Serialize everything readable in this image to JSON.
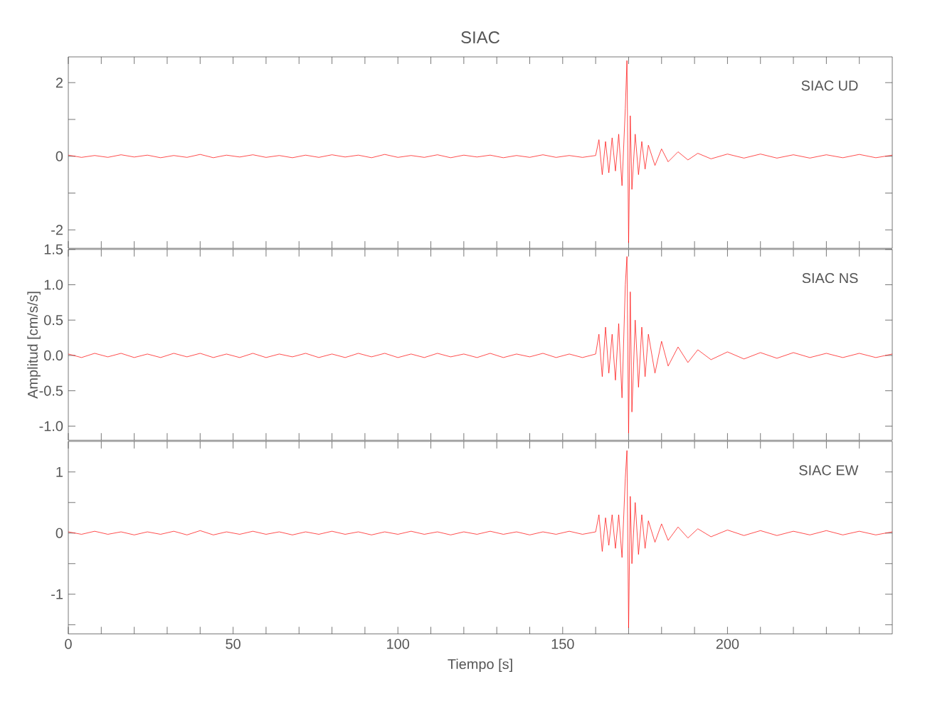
{
  "chart_data": [
    {
      "type": "line",
      "title": "SIAC",
      "annotations": [
        "SIAC   UD"
      ],
      "tick_labels": "y",
      "xlim": [
        0,
        250
      ],
      "ylim": [
        -2.5,
        2.7
      ],
      "xticks": [
        0,
        {
          "value": 10,
          "label": null
        },
        {
          "value": 20,
          "label": null
        },
        {
          "value": 30,
          "label": null
        },
        {
          "value": 40,
          "label": null
        },
        50,
        {
          "value": 60,
          "label": null
        },
        {
          "value": 70,
          "label": null
        },
        {
          "value": 80,
          "label": null
        },
        {
          "value": 90,
          "label": null
        },
        100,
        {
          "value": 110,
          "label": null
        },
        {
          "value": 120,
          "label": null
        },
        {
          "value": 130,
          "label": null
        },
        {
          "value": 140,
          "label": null
        },
        150,
        {
          "value": 160,
          "label": null
        },
        {
          "value": 170,
          "label": null
        },
        {
          "value": 180,
          "label": null
        },
        {
          "value": 190,
          "label": null
        },
        200,
        {
          "value": 210,
          "label": null
        },
        {
          "value": 220,
          "label": null
        },
        {
          "value": 230,
          "label": null
        },
        {
          "value": 240,
          "label": null
        }
      ],
      "yticks": [
        2,
        {
          "value": 1,
          "label": null
        },
        0,
        {
          "value": -1,
          "label": null
        },
        -2
      ],
      "series": [
        {
          "color": "#ff0000",
          "x": [
            0,
            4,
            8,
            12,
            16,
            20,
            24,
            28,
            32,
            36,
            40,
            44,
            48,
            52,
            56,
            60,
            64,
            68,
            72,
            76,
            80,
            84,
            88,
            92,
            96,
            100,
            104,
            108,
            112,
            116,
            120,
            124,
            128,
            132,
            136,
            140,
            144,
            148,
            152,
            156,
            160,
            161,
            162,
            163,
            164,
            165,
            166,
            167,
            168,
            169,
            169.5,
            170,
            170.5,
            171,
            172,
            173,
            174,
            175,
            176,
            178,
            180,
            182,
            185,
            188,
            191,
            195,
            200,
            205,
            210,
            215,
            220,
            225,
            230,
            235,
            240,
            245,
            250
          ],
          "values": [
            0.03,
            -0.03,
            0.02,
            -0.03,
            0.04,
            -0.02,
            0.03,
            -0.04,
            0.02,
            -0.03,
            0.05,
            -0.04,
            0.03,
            -0.02,
            0.04,
            -0.03,
            0.02,
            -0.04,
            0.03,
            -0.03,
            0.04,
            -0.02,
            0.03,
            -0.04,
            0.05,
            -0.03,
            0.02,
            -0.03,
            0.04,
            -0.04,
            0.03,
            -0.02,
            0.03,
            -0.04,
            0.02,
            -0.03,
            0.04,
            -0.03,
            0.02,
            -0.03,
            0.02,
            0.45,
            -0.5,
            0.4,
            -0.45,
            0.5,
            -0.4,
            0.6,
            -0.8,
            1.3,
            2.6,
            -2.35,
            1.1,
            -0.9,
            0.6,
            -0.5,
            0.4,
            -0.35,
            0.3,
            -0.25,
            0.2,
            -0.15,
            0.12,
            -0.1,
            0.08,
            -0.07,
            0.06,
            -0.05,
            0.06,
            -0.05,
            0.04,
            -0.05,
            0.04,
            -0.04,
            0.05,
            -0.04,
            0.03
          ]
        }
      ]
    },
    {
      "type": "line",
      "ylabel": "Amplitud [cm/s/s]",
      "annotations": [
        "SIAC   NS"
      ],
      "tick_labels": "y",
      "xlim": [
        0,
        250
      ],
      "ylim": [
        -1.2,
        1.5
      ],
      "xticks": [
        0,
        {
          "value": 10,
          "label": null
        },
        {
          "value": 20,
          "label": null
        },
        {
          "value": 30,
          "label": null
        },
        {
          "value": 40,
          "label": null
        },
        50,
        {
          "value": 60,
          "label": null
        },
        {
          "value": 70,
          "label": null
        },
        {
          "value": 80,
          "label": null
        },
        {
          "value": 90,
          "label": null
        },
        100,
        {
          "value": 110,
          "label": null
        },
        {
          "value": 120,
          "label": null
        },
        {
          "value": 130,
          "label": null
        },
        {
          "value": 140,
          "label": null
        },
        150,
        {
          "value": 160,
          "label": null
        },
        {
          "value": 170,
          "label": null
        },
        {
          "value": 180,
          "label": null
        },
        {
          "value": 190,
          "label": null
        },
        200,
        {
          "value": 210,
          "label": null
        },
        {
          "value": 220,
          "label": null
        },
        {
          "value": 230,
          "label": null
        },
        {
          "value": 240,
          "label": null
        }
      ],
      "yticks": [
        1.5,
        {
          "value": 1.0,
          "label": "1.0"
        },
        0.5,
        {
          "value": 0.0,
          "label": "0.0"
        },
        -0.5,
        {
          "value": -1.0,
          "label": "-1.0"
        }
      ],
      "series": [
        {
          "color": "#ff0000",
          "x": [
            0,
            4,
            8,
            12,
            16,
            20,
            24,
            28,
            32,
            36,
            40,
            44,
            48,
            52,
            56,
            60,
            64,
            68,
            72,
            76,
            80,
            84,
            88,
            92,
            96,
            100,
            104,
            108,
            112,
            116,
            120,
            124,
            128,
            132,
            136,
            140,
            144,
            148,
            152,
            156,
            160,
            161,
            162,
            163,
            164,
            165,
            166,
            167,
            168,
            169,
            169.5,
            170,
            170.5,
            171,
            172,
            173,
            174,
            175,
            176,
            178,
            180,
            182,
            185,
            188,
            191,
            195,
            200,
            205,
            210,
            215,
            220,
            225,
            230,
            235,
            240,
            245,
            250
          ],
          "values": [
            0.02,
            -0.03,
            0.03,
            -0.02,
            0.03,
            -0.03,
            0.02,
            -0.03,
            0.03,
            -0.02,
            0.03,
            -0.03,
            0.02,
            -0.03,
            0.03,
            -0.03,
            0.02,
            -0.02,
            0.03,
            -0.03,
            0.02,
            -0.03,
            0.03,
            -0.02,
            0.03,
            -0.03,
            0.02,
            -0.03,
            0.03,
            -0.02,
            0.02,
            -0.03,
            0.03,
            -0.03,
            0.02,
            -0.02,
            0.03,
            -0.03,
            0.02,
            -0.03,
            0.02,
            0.3,
            -0.3,
            0.4,
            -0.25,
            0.3,
            -0.35,
            0.45,
            -0.6,
            1.0,
            1.4,
            -1.1,
            0.9,
            -0.8,
            0.5,
            -0.45,
            0.4,
            -0.3,
            0.3,
            -0.25,
            0.2,
            -0.15,
            0.12,
            -0.1,
            0.08,
            -0.06,
            0.05,
            -0.05,
            0.04,
            -0.04,
            0.04,
            -0.03,
            0.03,
            -0.03,
            0.03,
            -0.03,
            0.02
          ]
        }
      ]
    },
    {
      "type": "line",
      "xlabel": "Tiempo [s]",
      "annotations": [
        "SIAC   EW"
      ],
      "xlim": [
        0,
        250
      ],
      "ylim": [
        -1.65,
        1.5
      ],
      "xticks": [
        0,
        {
          "value": 10,
          "label": null
        },
        {
          "value": 20,
          "label": null
        },
        {
          "value": 30,
          "label": null
        },
        {
          "value": 40,
          "label": null
        },
        50,
        {
          "value": 60,
          "label": null
        },
        {
          "value": 70,
          "label": null
        },
        {
          "value": 80,
          "label": null
        },
        {
          "value": 90,
          "label": null
        },
        100,
        {
          "value": 110,
          "label": null
        },
        {
          "value": 120,
          "label": null
        },
        {
          "value": 130,
          "label": null
        },
        {
          "value": 140,
          "label": null
        },
        150,
        {
          "value": 160,
          "label": null
        },
        {
          "value": 170,
          "label": null
        },
        {
          "value": 180,
          "label": null
        },
        {
          "value": 190,
          "label": null
        },
        200,
        {
          "value": 210,
          "label": null
        },
        {
          "value": 220,
          "label": null
        },
        {
          "value": 230,
          "label": null
        },
        {
          "value": 240,
          "label": null
        }
      ],
      "yticks": [
        1,
        {
          "value": 0.5,
          "label": null
        },
        0,
        {
          "value": -0.5,
          "label": null
        },
        -1,
        {
          "value": -1.5,
          "label": null
        }
      ],
      "series": [
        {
          "color": "#ff0000",
          "x": [
            0,
            4,
            8,
            12,
            16,
            20,
            24,
            28,
            32,
            36,
            40,
            44,
            48,
            52,
            56,
            60,
            64,
            68,
            72,
            76,
            80,
            84,
            88,
            92,
            96,
            100,
            104,
            108,
            112,
            116,
            120,
            124,
            128,
            132,
            136,
            140,
            144,
            148,
            152,
            156,
            160,
            161,
            162,
            163,
            164,
            165,
            166,
            167,
            168,
            169,
            169.5,
            170,
            170.5,
            171,
            172,
            173,
            174,
            175,
            176,
            178,
            180,
            182,
            185,
            188,
            191,
            195,
            200,
            205,
            210,
            215,
            220,
            225,
            230,
            235,
            240,
            245,
            250
          ],
          "values": [
            0.02,
            -0.02,
            0.03,
            -0.02,
            0.02,
            -0.03,
            0.02,
            -0.02,
            0.03,
            -0.03,
            0.04,
            -0.03,
            0.02,
            -0.02,
            0.03,
            -0.02,
            0.02,
            -0.03,
            0.02,
            -0.02,
            0.03,
            -0.02,
            0.02,
            -0.03,
            0.02,
            -0.02,
            0.03,
            -0.02,
            0.02,
            -0.03,
            0.02,
            -0.02,
            0.03,
            -0.02,
            0.02,
            -0.03,
            0.02,
            -0.02,
            0.03,
            -0.02,
            0.02,
            0.3,
            -0.3,
            0.25,
            -0.2,
            0.3,
            -0.25,
            0.3,
            -0.4,
            0.9,
            1.35,
            -1.55,
            0.6,
            -0.5,
            0.5,
            -0.35,
            0.3,
            -0.25,
            0.2,
            -0.15,
            0.15,
            -0.12,
            0.1,
            -0.08,
            0.07,
            -0.06,
            0.05,
            -0.04,
            0.04,
            -0.04,
            0.03,
            -0.03,
            0.04,
            -0.03,
            0.03,
            -0.03,
            0.02
          ]
        }
      ]
    }
  ]
}
